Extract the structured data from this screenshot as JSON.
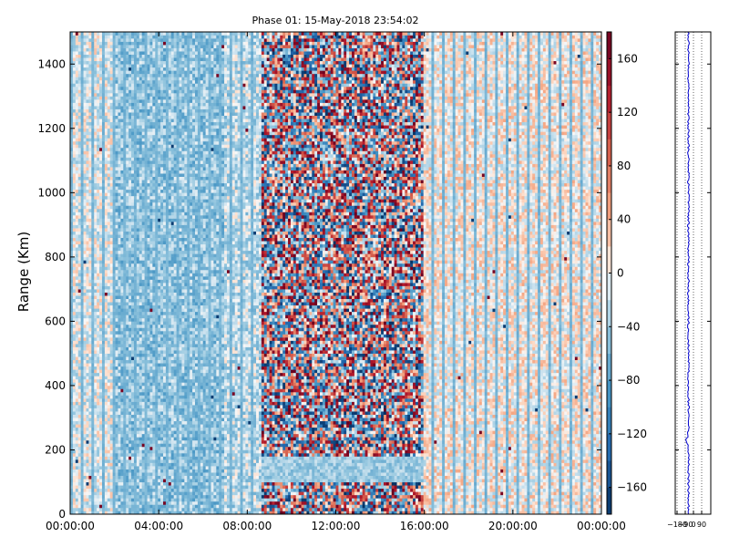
{
  "chart_data": [
    {
      "type": "heatmap",
      "title": "Phase 01: 15-May-2018 23:54:02",
      "xlabel": "",
      "ylabel": "Range (Km)",
      "x_range": [
        "00:00:00",
        "24:00:00"
      ],
      "xticks": [
        "00:00:00",
        "04:00:00",
        "08:00:00",
        "12:00:00",
        "16:00:00",
        "20:00:00",
        "00:00:00"
      ],
      "xtick_hours": [
        0,
        4,
        8,
        12,
        16,
        20,
        24
      ],
      "ylim": [
        0,
        1500
      ],
      "yticks": [
        0,
        200,
        400,
        600,
        800,
        1000,
        1200,
        1400
      ],
      "colorscale": "RdBu_r",
      "color_range": [
        -180,
        180
      ],
      "colorbar_ticks": [
        "−160",
        "−120",
        "−80",
        "−40",
        "0",
        "40",
        "80",
        "120",
        "160"
      ],
      "colorbar_tick_values": [
        -160,
        -120,
        -80,
        -40,
        0,
        40,
        80,
        120,
        160
      ],
      "noisy_interval_hours": [
        8.6,
        16.0
      ],
      "quiet_band_range_km": [
        100,
        180
      ],
      "grid": false
    },
    {
      "type": "line",
      "series_color": "#0000cc",
      "xticks": [
        "−180",
        "−90",
        "0",
        "90"
      ],
      "xtick_values": [
        -180,
        -90,
        0,
        90
      ],
      "xlim": [
        -200,
        190
      ],
      "ylim": [
        0,
        1500
      ],
      "grid": true,
      "grid_style": "dotted vertical"
    }
  ]
}
